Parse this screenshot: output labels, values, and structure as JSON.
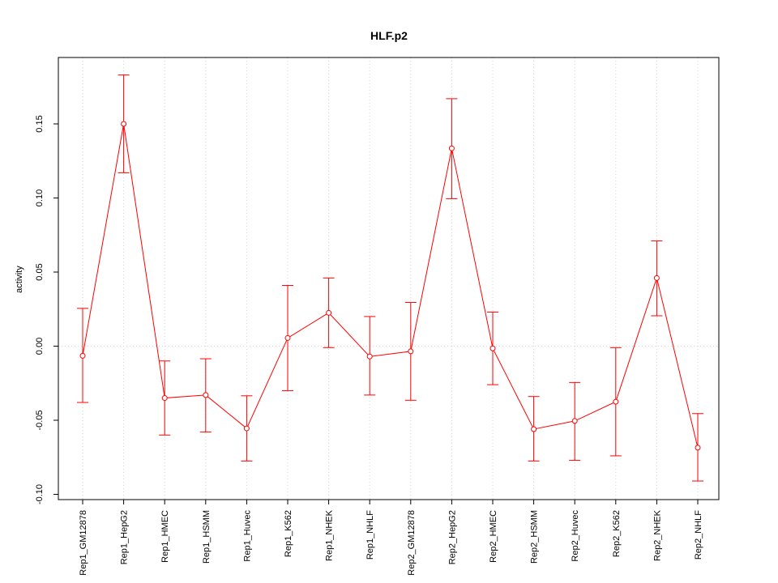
{
  "chart_data": {
    "type": "line",
    "title": "HLF.p2",
    "xlabel": "",
    "ylabel": "activity",
    "ylim": [
      -0.105,
      0.19
    ],
    "grid": true,
    "yticks": [
      -0.1,
      -0.05,
      0.0,
      0.05,
      0.1,
      0.15
    ],
    "ytick_labels": [
      "-0.10",
      "-0.05",
      "0.00",
      "0.05",
      "0.10",
      "0.15"
    ],
    "categories": [
      "Rep1_GM12878",
      "Rep1_HepG2",
      "Rep1_HMEC",
      "Rep1_HSMM",
      "Rep1_Huvec",
      "Rep1_K562",
      "Rep1_NHEK",
      "Rep1_NHLF",
      "Rep2_GM12878",
      "Rep2_HepG2",
      "Rep2_HMEC",
      "Rep2_HSMM",
      "Rep2_Huvec",
      "Rep2_K562",
      "Rep2_NHEK",
      "Rep2_NHLF"
    ],
    "series": [
      {
        "name": "HLF.p2",
        "color": "#ff0000",
        "values": [
          -0.0065,
          0.15,
          -0.035,
          -0.033,
          -0.0555,
          0.0055,
          0.0225,
          -0.007,
          -0.0035,
          0.1335,
          -0.0015,
          -0.056,
          -0.0505,
          -0.0375,
          0.046,
          -0.0685
        ],
        "err_low": [
          -0.038,
          0.117,
          -0.06,
          -0.058,
          -0.0775,
          -0.03,
          -0.001,
          -0.033,
          -0.0365,
          0.0995,
          -0.026,
          -0.0775,
          -0.077,
          -0.074,
          0.0205,
          -0.091
        ],
        "err_high": [
          0.0255,
          0.183,
          -0.01,
          -0.0085,
          -0.0335,
          0.041,
          0.046,
          0.02,
          0.0295,
          0.167,
          0.023,
          -0.034,
          -0.0245,
          -0.001,
          0.071,
          -0.0455
        ]
      }
    ]
  }
}
